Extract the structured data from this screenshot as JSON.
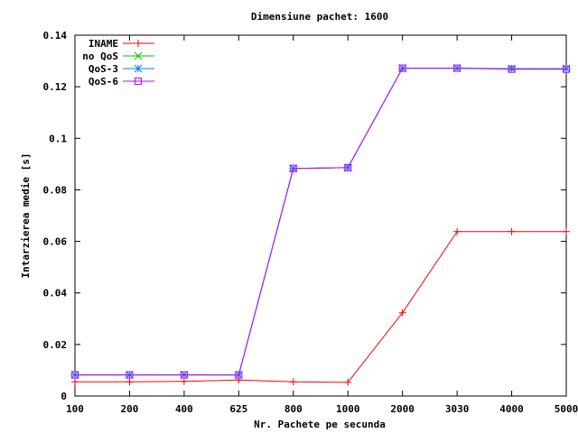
{
  "chart_data": {
    "type": "line",
    "title": "Dimensiune pachet: 1600",
    "xlabel": "Nr. Pachete pe secunda",
    "ylabel": "Intarzierea medie [s]",
    "categories": [
      "100",
      "200",
      "400",
      "625",
      "800",
      "1000",
      "2000",
      "3030",
      "4000",
      "5000"
    ],
    "ylim": [
      0,
      0.14
    ],
    "yticks": [
      0,
      0.02,
      0.04,
      0.06,
      0.08,
      0.1,
      0.12,
      0.14
    ],
    "ytick_labels": [
      "0",
      "0.02",
      "0.04",
      "0.06",
      "0.08",
      "0.1",
      "0.12",
      "0.14"
    ],
    "legend_position": "top-left",
    "series": [
      {
        "name": "INAME",
        "color": "#ff0000",
        "marker": "plus",
        "values": [
          0.0055,
          0.0055,
          0.0057,
          0.0062,
          0.0055,
          0.0053,
          0.0323,
          0.0638,
          0.0638,
          0.0638
        ]
      },
      {
        "name": "no QoS",
        "color": "#00c000",
        "marker": "cross",
        "values": [
          0.0082,
          0.0082,
          0.0082,
          0.0082,
          0.0883,
          0.0886,
          0.1272,
          0.1272,
          0.127,
          0.127
        ]
      },
      {
        "name": "QoS-3",
        "color": "#0080ff",
        "marker": "star",
        "values": [
          0.0082,
          0.0082,
          0.0082,
          0.0082,
          0.0883,
          0.0886,
          0.1272,
          0.1272,
          0.127,
          0.127
        ]
      },
      {
        "name": "QoS-6",
        "color": "#c000ff",
        "marker": "square",
        "values": [
          0.0082,
          0.0082,
          0.0082,
          0.0082,
          0.0883,
          0.0886,
          0.1272,
          0.1272,
          0.1268,
          0.1268
        ]
      }
    ]
  }
}
